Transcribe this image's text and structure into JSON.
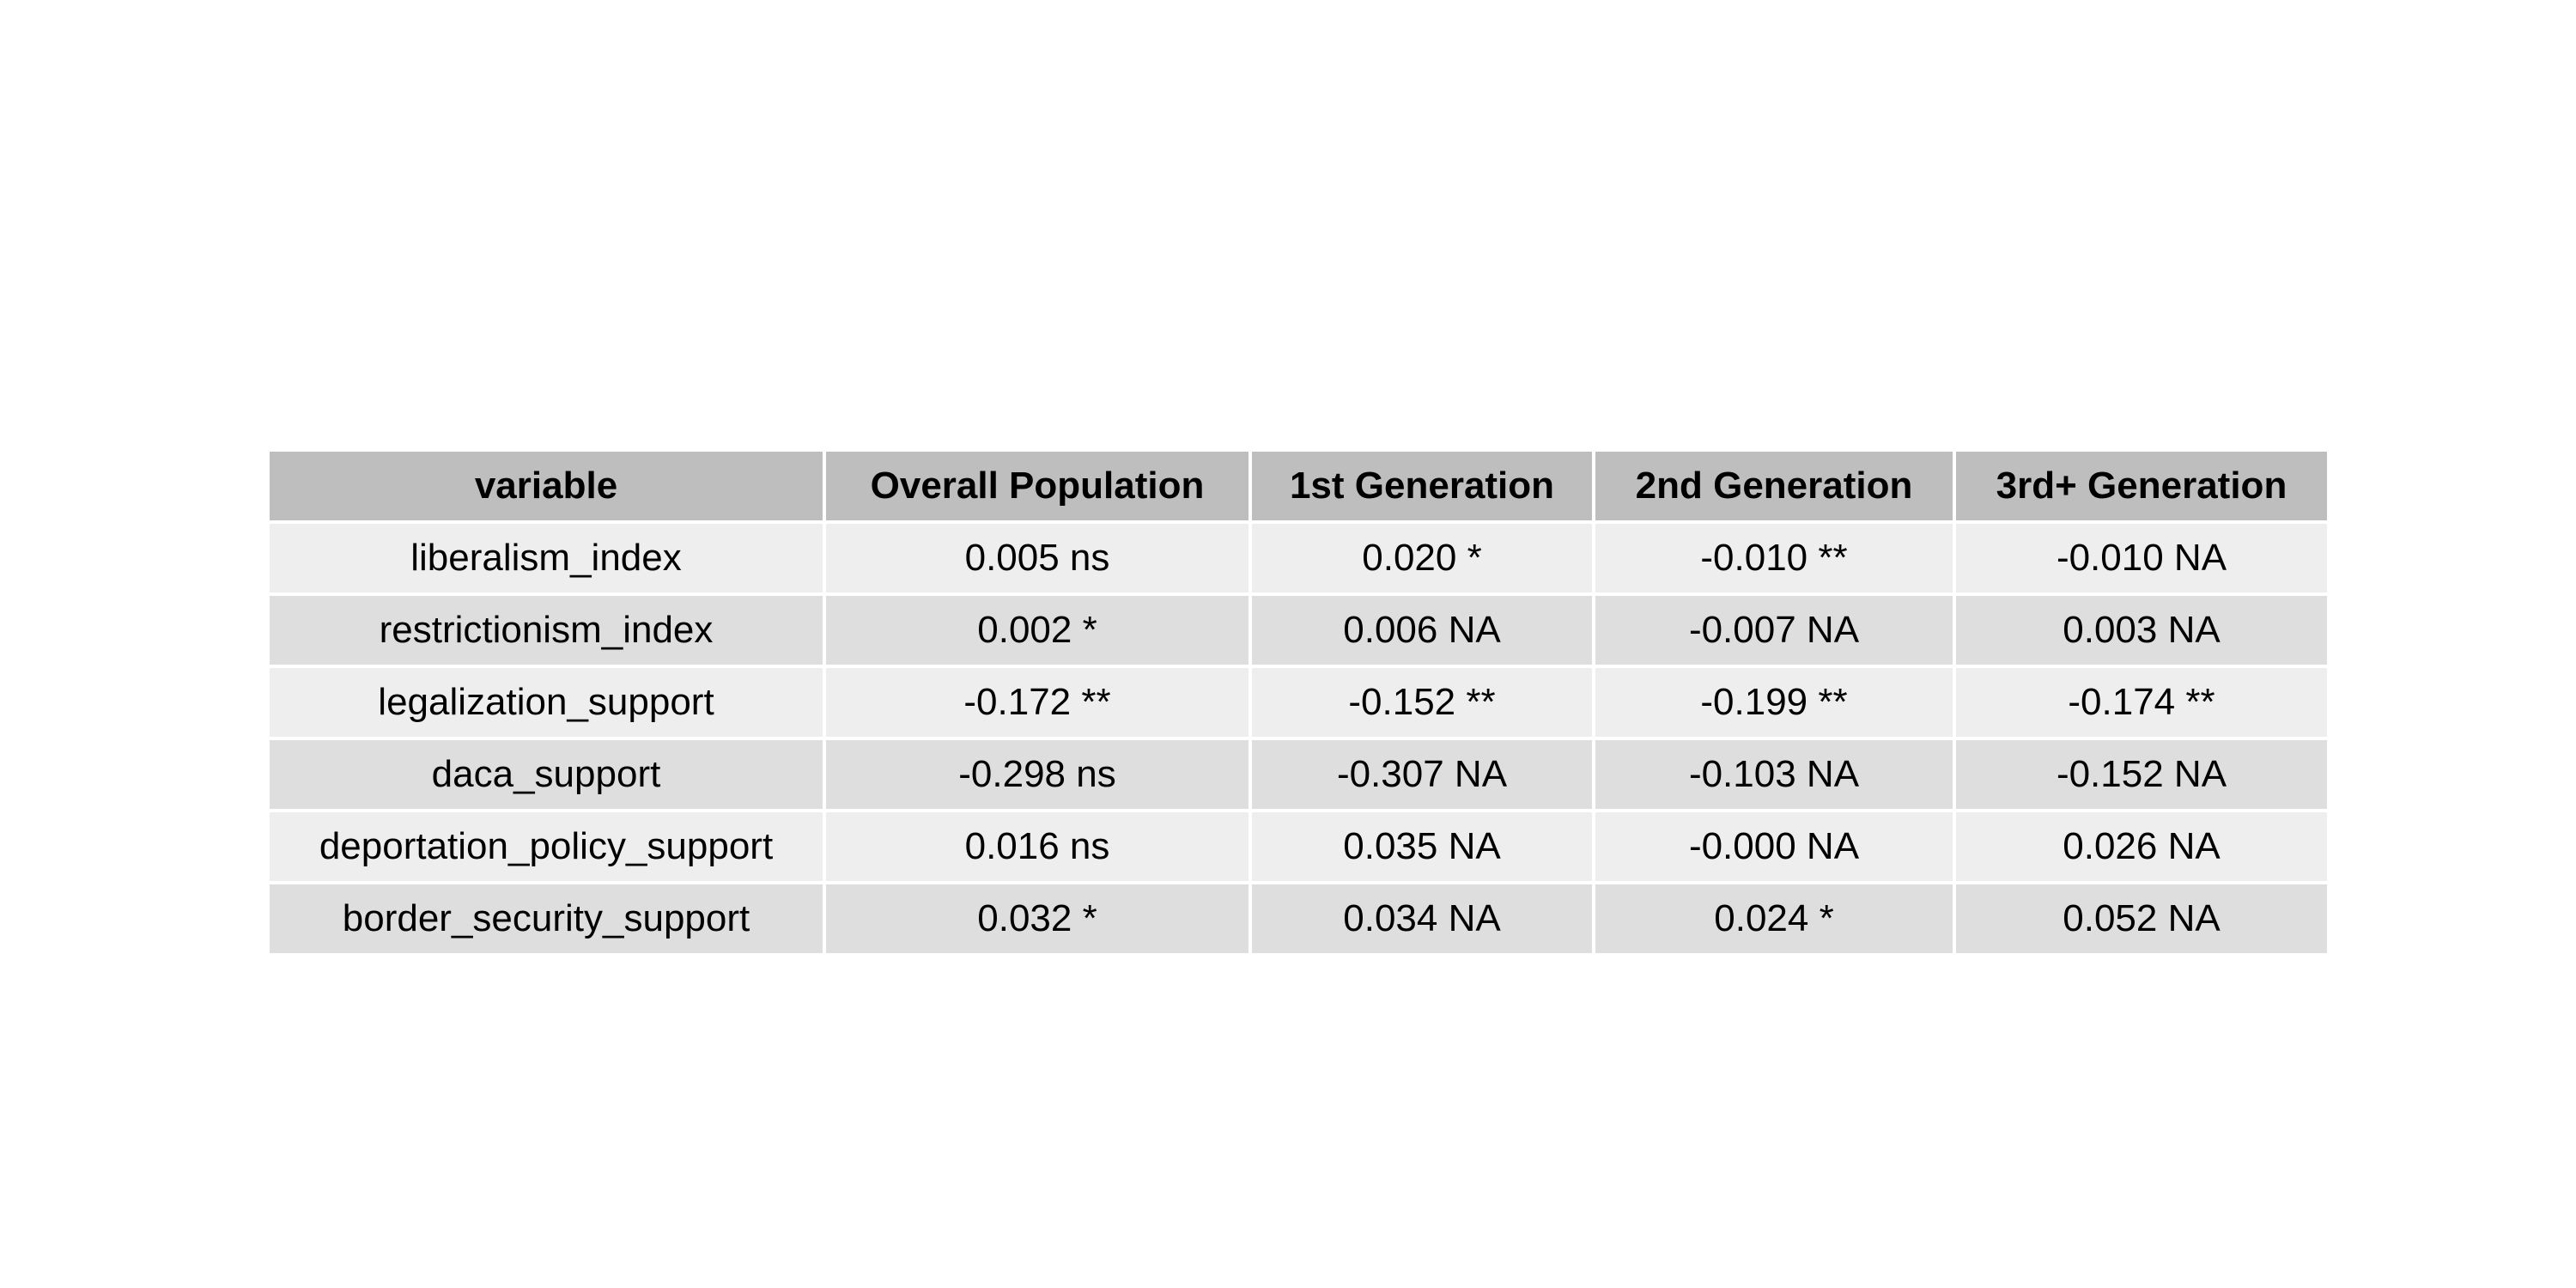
{
  "chart_data": {
    "type": "table",
    "columns": [
      "variable",
      "Overall Population",
      "1st Generation",
      "2nd Generation",
      "3rd+ Generation"
    ],
    "rows": [
      [
        "liberalism_index",
        "0.005 ns",
        "0.020 *",
        "-0.010 **",
        "-0.010 NA"
      ],
      [
        "restrictionism_index",
        "0.002 *",
        "0.006 NA",
        "-0.007 NA",
        "0.003 NA"
      ],
      [
        "legalization_support",
        "-0.172 **",
        "-0.152 **",
        "-0.199 **",
        "-0.174 **"
      ],
      [
        "daca_support",
        "-0.298 ns",
        "-0.307 NA",
        "-0.103 NA",
        "-0.152 NA"
      ],
      [
        "deportation_policy_support",
        "0.016 ns",
        "0.035 NA",
        "-0.000 NA",
        "0.026 NA"
      ],
      [
        "border_security_support",
        "0.032 *",
        "0.034 NA",
        "0.024 *",
        "0.052 NA"
      ]
    ],
    "colors": {
      "header_bg": "#bebebe",
      "row_odd_bg": "#eeeeee",
      "row_even_bg": "#dedede",
      "grid_line": "#ffffff",
      "text": "#000000"
    }
  }
}
